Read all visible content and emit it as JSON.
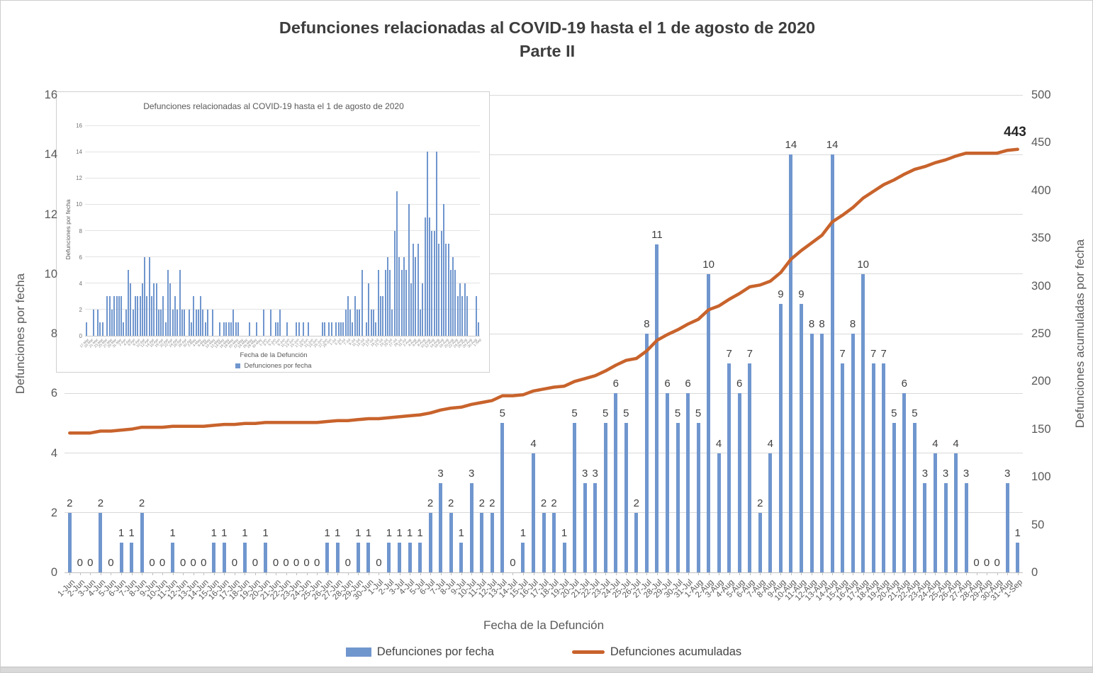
{
  "title": {
    "line1": "Defunciones relacionadas al COVID-19 hasta el 1 de agosto de 2020",
    "line2": "Parte II"
  },
  "colors": {
    "bar": "#7096CE",
    "line": "#C8632C",
    "gridline": "#D9D9D9",
    "axis_line": "#BFBFBF",
    "tick_text": "#595959",
    "data_label": "#3F3F3F",
    "end_label": "#262626"
  },
  "legend": {
    "bars_label": "Defunciones por fecha",
    "line_label": "Defunciones acumuladas"
  },
  "chart_data": {
    "type": "bar",
    "subtype": "bar-with-cumulative-line",
    "title": "Defunciones relacionadas al COVID-19 hasta el 1 de agosto de 2020 Parte II",
    "xlabel": "Fecha de la Defunción",
    "ylabel_left": "Defunciones por fecha",
    "ylabel_right": "Defunciones acumuladas por fecha",
    "y_left_ticks": [
      0,
      2,
      4,
      6,
      8,
      10,
      12,
      14,
      16
    ],
    "y_right_ticks": [
      0,
      50,
      100,
      150,
      200,
      250,
      300,
      350,
      400,
      450,
      500
    ],
    "y_left_max": 16,
    "y_right_max": 500,
    "grid": "horizontal",
    "legend_position": "bottom",
    "categories": [
      "1-Jun",
      "2-Jun",
      "3-Jun",
      "4-Jun",
      "5-Jun",
      "6-Jun",
      "7-Jun",
      "8-Jun",
      "9-Jun",
      "10-Jun",
      "11-Jun",
      "12-Jun",
      "13-Jun",
      "14-Jun",
      "15-Jun",
      "16-Jun",
      "17-Jun",
      "18-Jun",
      "19-Jun",
      "20-Jun",
      "21-Jun",
      "22-Jun",
      "23-Jun",
      "24-Jun",
      "25-Jun",
      "26-Jun",
      "27-Jun",
      "28-Jun",
      "29-Jun",
      "30-Jun",
      "1-Jul",
      "2-Jul",
      "3-Jul",
      "4-Jul",
      "5-Jul",
      "6-Jul",
      "7-Jul",
      "8-Jul",
      "9-Jul",
      "10-Jul",
      "11-Jul",
      "12-Jul",
      "13-Jul",
      "14-Jul",
      "15-Jul",
      "16-Jul",
      "17-Jul",
      "18-Jul",
      "19-Jul",
      "20-Jul",
      "21-Jul",
      "22-Jul",
      "23-Jul",
      "24-Jul",
      "25-Jul",
      "26-Jul",
      "27-Jul",
      "28-Jul",
      "29-Jul",
      "30-Jul",
      "31-Jul",
      "1-Aug",
      "2-Aug",
      "3-Aug",
      "4-Aug",
      "5-Aug",
      "6-Aug",
      "7-Aug",
      "8-Aug",
      "9-Aug",
      "10-Aug",
      "11-Aug",
      "12-Aug",
      "13-Aug",
      "14-Aug",
      "15-Aug",
      "16-Aug",
      "17-Aug",
      "18-Aug",
      "19-Aug",
      "20-Aug",
      "21-Aug",
      "22-Aug",
      "23-Aug",
      "24-Aug",
      "25-Aug",
      "26-Aug",
      "27-Aug",
      "28-Aug",
      "29-Aug",
      "30-Aug",
      "31-Aug",
      "1-Sep"
    ],
    "series": [
      {
        "name": "Defunciones por fecha",
        "type": "bar",
        "axis": "left",
        "data_labels_shown": true,
        "values": [
          2,
          0,
          0,
          2,
          0,
          1,
          1,
          2,
          0,
          0,
          1,
          0,
          0,
          0,
          1,
          1,
          0,
          1,
          0,
          1,
          0,
          0,
          0,
          0,
          0,
          1,
          1,
          0,
          1,
          1,
          0,
          1,
          1,
          1,
          1,
          2,
          3,
          2,
          1,
          3,
          2,
          2,
          5,
          0,
          1,
          4,
          2,
          2,
          1,
          5,
          3,
          3,
          5,
          6,
          5,
          2,
          8,
          11,
          6,
          5,
          6,
          5,
          10,
          4,
          7,
          6,
          7,
          2,
          4,
          9,
          14,
          9,
          8,
          8,
          14,
          7,
          8,
          10,
          7,
          7,
          5,
          6,
          5,
          3,
          4,
          3,
          4,
          3,
          0,
          0,
          0,
          3,
          1
        ]
      },
      {
        "name": "Defunciones acumuladas",
        "type": "line",
        "axis": "right",
        "end_label": "443",
        "values": [
          146,
          146,
          146,
          148,
          148,
          149,
          150,
          152,
          152,
          152,
          153,
          153,
          153,
          153,
          154,
          155,
          155,
          156,
          156,
          157,
          157,
          157,
          157,
          157,
          157,
          158,
          159,
          159,
          160,
          161,
          161,
          162,
          163,
          164,
          165,
          167,
          170,
          172,
          173,
          176,
          178,
          180,
          185,
          185,
          186,
          190,
          192,
          194,
          195,
          200,
          203,
          206,
          211,
          217,
          222,
          224,
          232,
          243,
          249,
          254,
          260,
          265,
          275,
          279,
          286,
          292,
          299,
          301,
          305,
          314,
          328,
          337,
          345,
          353,
          367,
          374,
          382,
          392,
          399,
          406,
          411,
          417,
          422,
          425,
          429,
          432,
          436,
          439,
          439,
          439,
          439,
          442,
          443
        ]
      }
    ]
  },
  "inset_chart": {
    "type": "bar",
    "title": "Defunciones relacionadas al COVID-19 hasta el 1 de agosto de 2020",
    "xlabel": "Fecha de la Defunción",
    "ylabel": "Defunciones por fecha",
    "legend_label": "Defunciones por fecha",
    "y_ticks": [
      0,
      2,
      4,
      6,
      8,
      10,
      12,
      14,
      16
    ],
    "y_max": 16,
    "date_ranges": [
      [
        "Mar",
        17,
        31
      ],
      [
        "Apr",
        1,
        30
      ],
      [
        "May",
        1,
        31
      ],
      [
        "Jun",
        1,
        30
      ],
      [
        "Jul",
        1,
        31
      ],
      [
        "Aug",
        1,
        31
      ],
      [
        "Sep",
        1,
        1
      ]
    ],
    "x_label_every": 2,
    "values": [
      1,
      0,
      0,
      2,
      0,
      2,
      1,
      1,
      0,
      3,
      3,
      2,
      3,
      3,
      3,
      3,
      1,
      2,
      5,
      4,
      2,
      3,
      3,
      3,
      4,
      6,
      3,
      6,
      3,
      4,
      4,
      2,
      2,
      3,
      1,
      5,
      4,
      2,
      3,
      2,
      5,
      2,
      2,
      0,
      2,
      1,
      3,
      2,
      2,
      3,
      2,
      1,
      2,
      0,
      2,
      0,
      0,
      1,
      0,
      1,
      1,
      1,
      1,
      2,
      1,
      1,
      0,
      0,
      0,
      0,
      1,
      0,
      0,
      1,
      0,
      0,
      2,
      0,
      0,
      2,
      0,
      1,
      1,
      2,
      0,
      0,
      1,
      0,
      0,
      0,
      1,
      1,
      0,
      1,
      0,
      1,
      0,
      0,
      0,
      0,
      0,
      1,
      1,
      0,
      1,
      1,
      0,
      1,
      1,
      1,
      1,
      2,
      3,
      2,
      1,
      3,
      2,
      2,
      5,
      0,
      1,
      4,
      2,
      2,
      1,
      5,
      3,
      3,
      5,
      6,
      5,
      2,
      8,
      11,
      6,
      5,
      6,
      5,
      10,
      4,
      7,
      6,
      7,
      2,
      4,
      9,
      14,
      9,
      8,
      8,
      14,
      7,
      8,
      10,
      7,
      7,
      5,
      6,
      5,
      3,
      4,
      3,
      4,
      3,
      0,
      0,
      0,
      3,
      1
    ]
  }
}
